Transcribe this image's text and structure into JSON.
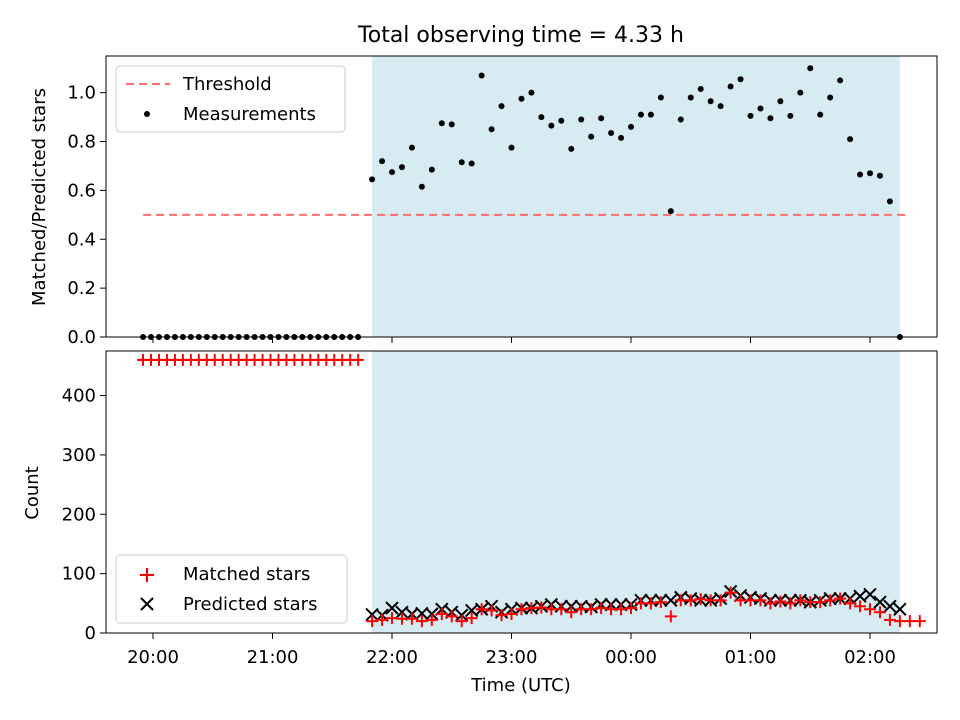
{
  "chart_data": [
    {
      "type": "scatter",
      "title": "Total observing time = 4.33 h",
      "xlabel": "",
      "ylabel": "Matched/Predicted stars",
      "ylim": [
        0,
        1.15
      ],
      "yticks": [
        "0.0",
        "0.2",
        "0.4",
        "0.6",
        "0.8",
        "1.0"
      ],
      "shade": {
        "start": "21:50",
        "end": "02:15",
        "color": "#add8e6"
      },
      "threshold": {
        "value": 0.5,
        "start": "19:55",
        "end": "02:20",
        "color": "#ff6f6f"
      },
      "legend": {
        "position": "top-left",
        "entries": [
          "Threshold",
          "Measurements"
        ]
      },
      "series": [
        {
          "name": "Measurements",
          "color": "#000000",
          "times": [
            "19:55",
            "19:59",
            "20:03",
            "20:07",
            "20:11",
            "20:15",
            "20:19",
            "20:23",
            "20:27",
            "20:31",
            "20:35",
            "20:39",
            "20:43",
            "20:47",
            "20:51",
            "20:55",
            "20:59",
            "21:03",
            "21:07",
            "21:11",
            "21:15",
            "21:19",
            "21:23",
            "21:27",
            "21:31",
            "21:35",
            "21:39",
            "21:43",
            "21:50",
            "21:55",
            "22:00",
            "22:05",
            "22:10",
            "22:15",
            "22:20",
            "22:25",
            "22:30",
            "22:35",
            "22:40",
            "22:45",
            "22:50",
            "22:55",
            "23:00",
            "23:05",
            "23:10",
            "23:15",
            "23:20",
            "23:25",
            "23:30",
            "23:35",
            "23:40",
            "23:45",
            "23:50",
            "23:55",
            "00:00",
            "00:05",
            "00:10",
            "00:15",
            "00:20",
            "00:25",
            "00:30",
            "00:35",
            "00:40",
            "00:45",
            "00:50",
            "00:55",
            "01:00",
            "01:05",
            "01:10",
            "01:15",
            "01:20",
            "01:25",
            "01:30",
            "01:35",
            "01:40",
            "01:45",
            "01:50",
            "01:55",
            "02:00",
            "02:05",
            "02:10",
            "02:15"
          ],
          "values": [
            0,
            0,
            0,
            0,
            0,
            0,
            0,
            0,
            0,
            0,
            0,
            0,
            0,
            0,
            0,
            0,
            0,
            0,
            0,
            0,
            0,
            0,
            0,
            0,
            0,
            0,
            0,
            0,
            0.645,
            0.72,
            0.675,
            0.695,
            0.775,
            0.615,
            0.685,
            0.875,
            0.87,
            0.715,
            0.71,
            1.07,
            0.85,
            0.945,
            0.775,
            0.975,
            1.0,
            0.9,
            0.865,
            0.885,
            0.77,
            0.89,
            0.82,
            0.895,
            0.835,
            0.815,
            0.86,
            0.91,
            0.91,
            0.98,
            0.515,
            0.89,
            0.98,
            1.015,
            0.965,
            0.945,
            1.025,
            1.055,
            0.905,
            0.935,
            0.895,
            0.965,
            0.905,
            1.0,
            1.1,
            0.91,
            0.98,
            1.05,
            0.81,
            0.665,
            0.67,
            0.66,
            0.555,
            0.0
          ]
        }
      ]
    },
    {
      "type": "scatter",
      "title": "",
      "xlabel": "Time (UTC)",
      "ylabel": "Count",
      "ylim": [
        0,
        475
      ],
      "yticks": [
        "0",
        "100",
        "200",
        "300",
        "400"
      ],
      "xticks": [
        "20:00",
        "21:00",
        "22:00",
        "23:00",
        "00:00",
        "01:00",
        "02:00"
      ],
      "shade": {
        "start": "21:50",
        "end": "02:15",
        "color": "#add8e6"
      },
      "legend": {
        "position": "bottom-left",
        "entries": [
          "Matched stars",
          "Predicted stars"
        ]
      },
      "series": [
        {
          "name": "Matched stars",
          "marker": "plus",
          "color": "#ff0000",
          "times": [
            "19:55",
            "19:59",
            "20:03",
            "20:07",
            "20:11",
            "20:15",
            "20:19",
            "20:23",
            "20:27",
            "20:31",
            "20:35",
            "20:39",
            "20:43",
            "20:47",
            "20:51",
            "20:55",
            "20:59",
            "21:03",
            "21:07",
            "21:11",
            "21:15",
            "21:19",
            "21:23",
            "21:27",
            "21:31",
            "21:35",
            "21:39",
            "21:43",
            "21:50",
            "21:55",
            "22:00",
            "22:05",
            "22:10",
            "22:15",
            "22:20",
            "22:25",
            "22:30",
            "22:35",
            "22:40",
            "22:45",
            "22:50",
            "22:55",
            "23:00",
            "23:05",
            "23:10",
            "23:15",
            "23:20",
            "23:25",
            "23:30",
            "23:35",
            "23:40",
            "23:45",
            "23:50",
            "23:55",
            "00:00",
            "00:05",
            "00:10",
            "00:15",
            "00:20",
            "00:25",
            "00:30",
            "00:35",
            "00:40",
            "00:45",
            "00:50",
            "00:55",
            "01:00",
            "01:05",
            "01:10",
            "01:15",
            "01:20",
            "01:25",
            "01:30",
            "01:35",
            "01:40",
            "01:45",
            "01:50",
            "01:55",
            "02:00",
            "02:05",
            "02:10",
            "02:15",
            "02:20",
            "02:25"
          ],
          "values": [
            460,
            460,
            460,
            460,
            460,
            460,
            460,
            460,
            460,
            460,
            460,
            460,
            460,
            460,
            460,
            460,
            460,
            460,
            460,
            460,
            460,
            460,
            460,
            460,
            460,
            460,
            460,
            460,
            20,
            22,
            25,
            24,
            24,
            20,
            22,
            32,
            28,
            20,
            25,
            40,
            38,
            30,
            32,
            40,
            42,
            43,
            40,
            40,
            35,
            40,
            40,
            42,
            40,
            40,
            42,
            50,
            50,
            52,
            28,
            55,
            55,
            57,
            55,
            55,
            68,
            55,
            55,
            55,
            50,
            53,
            50,
            55,
            52,
            52,
            55,
            58,
            50,
            45,
            40,
            35,
            22,
            20,
            20,
            20
          ]
        },
        {
          "name": "Predicted stars",
          "marker": "x",
          "color": "#000000",
          "times": [
            "21:50",
            "21:55",
            "22:00",
            "22:05",
            "22:10",
            "22:15",
            "22:20",
            "22:25",
            "22:30",
            "22:35",
            "22:40",
            "22:45",
            "22:50",
            "22:55",
            "23:00",
            "23:05",
            "23:10",
            "23:15",
            "23:20",
            "23:25",
            "23:30",
            "23:35",
            "23:40",
            "23:45",
            "23:50",
            "23:55",
            "00:00",
            "00:05",
            "00:10",
            "00:15",
            "00:20",
            "00:25",
            "00:30",
            "00:35",
            "00:40",
            "00:45",
            "00:50",
            "00:55",
            "01:00",
            "01:05",
            "01:10",
            "01:15",
            "01:20",
            "01:25",
            "01:30",
            "01:35",
            "01:40",
            "01:45",
            "01:50",
            "01:55",
            "02:00",
            "02:05",
            "02:10",
            "02:15"
          ],
          "values": [
            31,
            30,
            42,
            35,
            32,
            33,
            32,
            40,
            35,
            30,
            38,
            40,
            45,
            35,
            40,
            42,
            42,
            45,
            48,
            45,
            45,
            45,
            44,
            48,
            48,
            48,
            48,
            55,
            55,
            55,
            55,
            60,
            58,
            55,
            55,
            58,
            70,
            63,
            60,
            58,
            55,
            55,
            55,
            55,
            52,
            55,
            58,
            58,
            58,
            62,
            65,
            52,
            45,
            40
          ]
        }
      ]
    }
  ]
}
